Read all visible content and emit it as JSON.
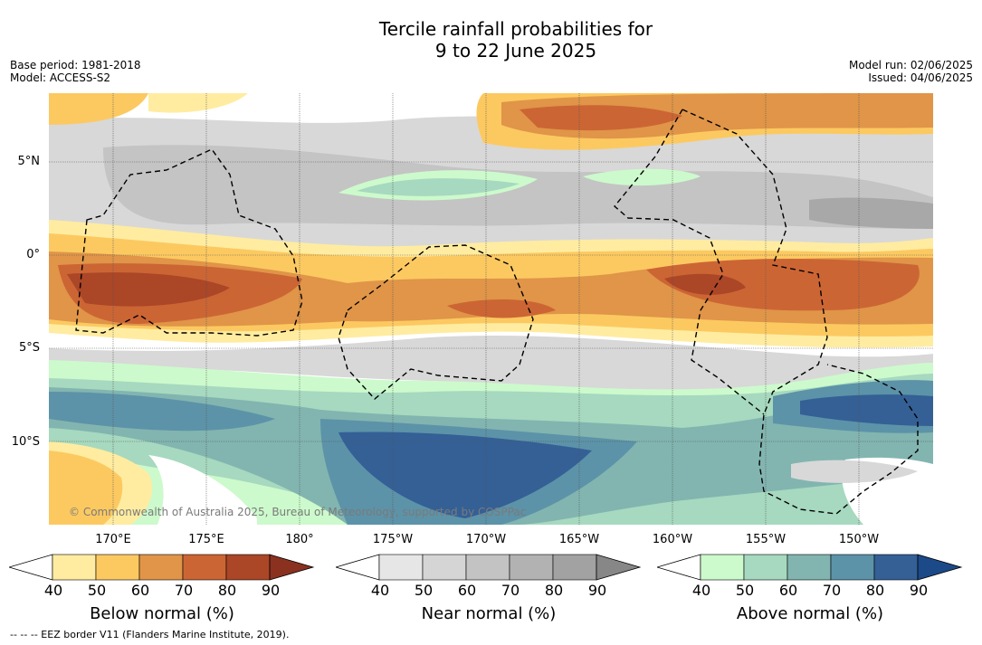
{
  "title_line1": "Tercile rainfall probabilities for",
  "title_line2": "9 to 22 June 2025",
  "base_period": "Base period: 1981-2018",
  "model": "Model: ACCESS-S2",
  "model_run": "Model run: 02/06/2025",
  "issued": "Issued: 04/06/2025",
  "credit": "© Commonwealth of Australia 2025, Bureau of Meteorology, supported by COSPPac",
  "footer": "-- -- -- EEZ border V11 (Flanders Marine Institute, 2019).",
  "lat_labels": [
    "5°N",
    "0°",
    "5°S",
    "10°S"
  ],
  "lon_labels": [
    "170°E",
    "175°E",
    "180°",
    "175°W",
    "170°W",
    "165°W",
    "160°W",
    "155°W",
    "150°W"
  ],
  "colorbars": {
    "below": {
      "title": "Below normal (%)",
      "ticks": [
        "40",
        "50",
        "60",
        "70",
        "80",
        "90"
      ],
      "colors": [
        "#ffeca0",
        "#fcc961",
        "#e09548",
        "#cc6534",
        "#ab4627",
        "#8a3120"
      ]
    },
    "near": {
      "title": "Near normal (%)",
      "ticks": [
        "40",
        "50",
        "60",
        "70",
        "80",
        "90"
      ],
      "colors": [
        "#e6e6e6",
        "#d5d5d5",
        "#c3c3c3",
        "#b2b2b2",
        "#a2a2a2",
        "#878787"
      ]
    },
    "above": {
      "title": "Above normal (%)",
      "ticks": [
        "40",
        "50",
        "60",
        "70",
        "80",
        "90"
      ],
      "colors": [
        "#ccfacc",
        "#a6d9bf",
        "#82b5b0",
        "#5c93a8",
        "#346096",
        "#1c4a88"
      ]
    }
  }
}
